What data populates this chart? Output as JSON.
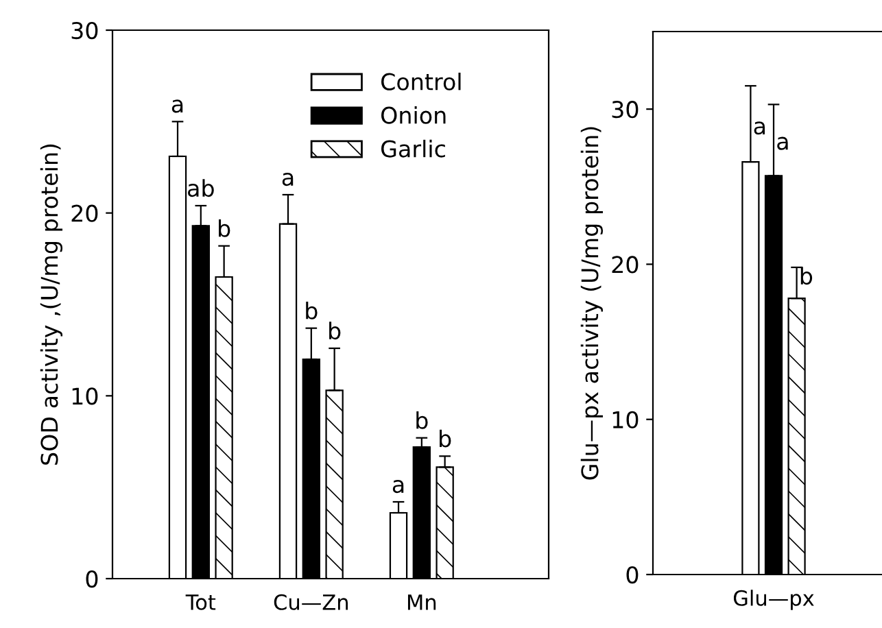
{
  "chart_data": [
    {
      "type": "bar",
      "ylabel": "SOD activity ,(U/mg protein)",
      "categories": [
        "Tot",
        "Cu—Zn",
        "Mn"
      ],
      "ylim": [
        0,
        30
      ],
      "yticks": [
        0,
        10,
        20,
        30
      ],
      "legend": "top right",
      "grid": false,
      "series": [
        {
          "name": "Control",
          "color": "#ffffff",
          "values": [
            23.1,
            19.4,
            3.6
          ],
          "errors": [
            1.9,
            1.6,
            0.6
          ],
          "value_labels": [
            "a",
            "a",
            "a"
          ]
        },
        {
          "name": "Onion",
          "color": "#000000",
          "values": [
            19.3,
            12.0,
            7.2
          ],
          "errors": [
            1.1,
            1.7,
            0.5
          ],
          "value_labels": [
            "ab",
            "b",
            "b"
          ]
        },
        {
          "name": "Garlic",
          "color": "#000000",
          "values": [
            16.5,
            10.3,
            6.1
          ],
          "errors": [
            1.7,
            2.3,
            0.6
          ],
          "value_labels": [
            "b",
            "b",
            "b"
          ]
        }
      ]
    },
    {
      "type": "bar",
      "ylabel": "Glu—px activity (U/mg protein)",
      "categories": [
        "Glu—px"
      ],
      "ylim": [
        0,
        35
      ],
      "yticks": [
        0,
        10,
        20,
        30
      ],
      "grid": false,
      "series": [
        {
          "color": "#ffffff",
          "values": [
            26.6
          ],
          "errors": [
            4.9
          ],
          "value_labels": [
            "a"
          ]
        },
        {
          "color": "#000000",
          "values": [
            25.7
          ],
          "errors": [
            4.6
          ],
          "value_labels": [
            "a"
          ]
        },
        {
          "color": "#000000",
          "values": [
            17.8
          ],
          "errors": [
            2.0
          ],
          "value_labels": [
            "b"
          ]
        }
      ]
    }
  ]
}
